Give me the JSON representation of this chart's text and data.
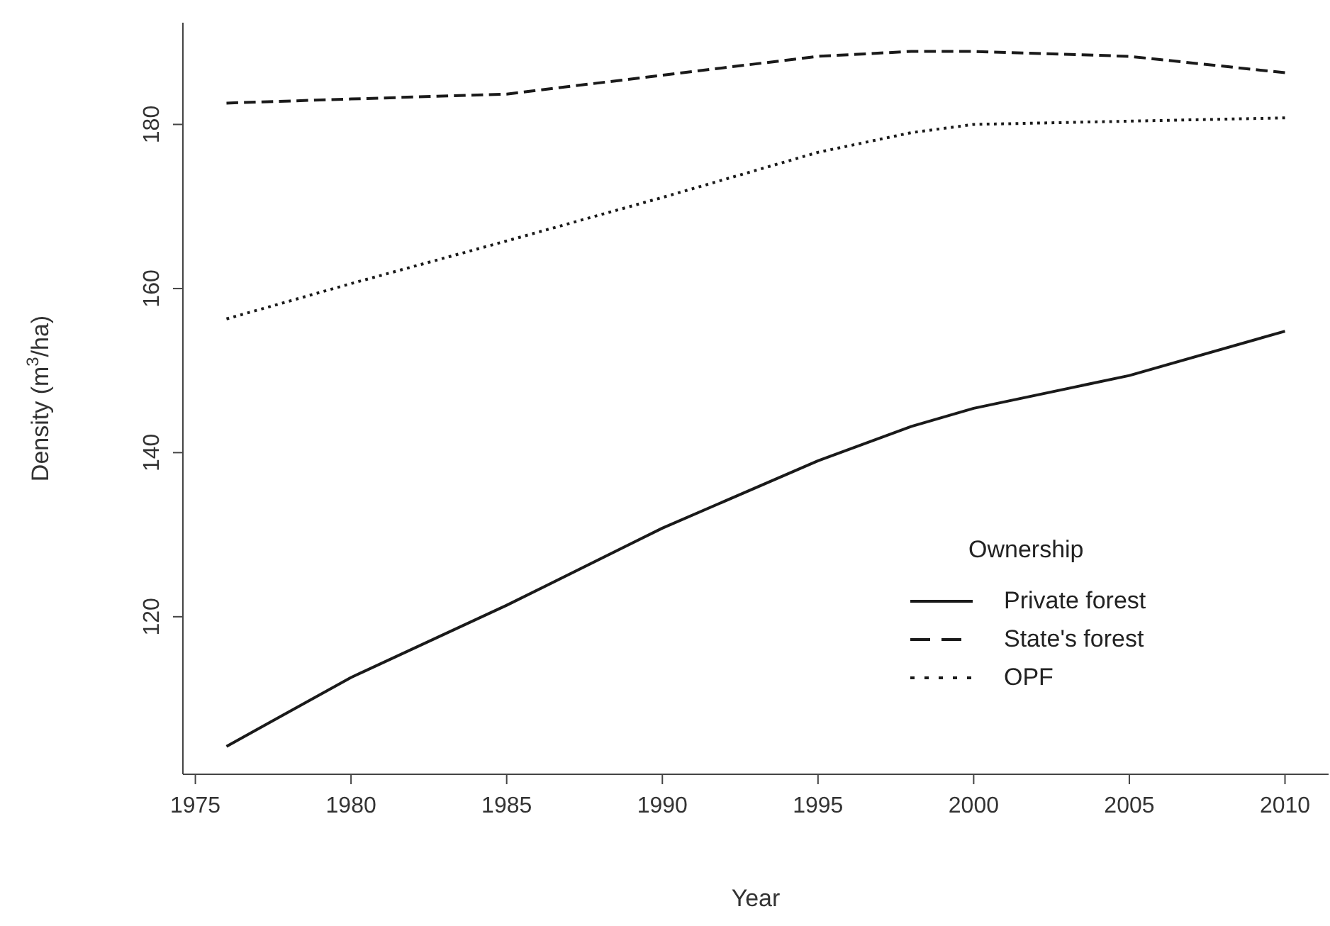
{
  "chart_data": {
    "type": "line",
    "xlabel": "Year",
    "ylabel": "Density (m$^{3}$/ha)",
    "legend_title": "Ownership",
    "legend": "bottom right",
    "marker": "none",
    "x": [
      1976,
      1980,
      1985,
      1990,
      1995,
      1998,
      2000,
      2005,
      2010
    ],
    "series": [
      {
        "name": "Private forest",
        "color": "#1a1a1a",
        "line_style": "solid",
        "values": [
          104.2,
          112.6,
          121.4,
          130.8,
          139.0,
          143.2,
          145.4,
          149.4,
          154.8
        ]
      },
      {
        "name": "State's forest",
        "color": "#1a1a1a",
        "line_style": "dashed",
        "values": [
          182.6,
          183.1,
          183.7,
          186.0,
          188.3,
          188.9,
          188.9,
          188.3,
          186.3
        ]
      },
      {
        "name": "OPF",
        "color": "#1a1a1a",
        "line_style": "dotted",
        "values": [
          156.3,
          160.6,
          165.8,
          171.1,
          176.6,
          179.0,
          180.0,
          180.4,
          180.8
        ]
      }
    ],
    "xlim": [
      1974.6,
      2011.4
    ],
    "xticks": [
      1975,
      1980,
      1985,
      1990,
      1995,
      2000,
      2005,
      2010
    ],
    "ylim": [
      100.8,
      192.4
    ],
    "yticks": [
      120,
      140,
      160,
      180
    ],
    "grid": false
  }
}
